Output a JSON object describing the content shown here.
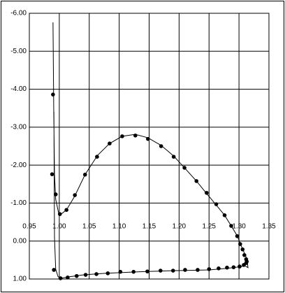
{
  "chart_data": {
    "type": "line",
    "xlim": [
      0.95,
      1.35
    ],
    "ylim": [
      -6,
      1
    ],
    "y_inverted": true,
    "grid": true,
    "xticks": [
      0.95,
      {
        "value": 1,
        "label": "1.00"
      },
      1.05,
      {
        "value": 1.1,
        "label": "1.10"
      },
      1.15,
      {
        "value": 1.2,
        "label": "1.20"
      },
      1.25,
      {
        "value": 1.3,
        "label": "1.30"
      },
      1.35
    ],
    "yticks": [
      {
        "value": -6,
        "label": "-6.00"
      },
      {
        "value": -5,
        "label": "-5.00"
      },
      {
        "value": -4,
        "label": "-4.00"
      },
      {
        "value": -3,
        "label": "-3.00"
      },
      {
        "value": -2,
        "label": "-2.00"
      },
      {
        "value": -1,
        "label": "-1.00"
      },
      {
        "value": 0,
        "label": "0.00"
      },
      {
        "value": 1,
        "label": "1.00"
      }
    ],
    "series": [
      {
        "style": "line",
        "color": "#000000",
        "x": [
          0.9895,
          0.9907,
          0.992,
          0.994,
          0.999,
          1.003,
          1.012,
          1.026,
          1.043,
          1.064,
          1.084,
          1.105,
          1.127,
          1.148,
          1.17,
          1.191,
          1.209,
          1.229,
          1.246,
          1.262,
          1.276,
          1.287,
          1.297,
          1.303,
          1.308,
          1.312,
          1.314,
          1.315,
          1.31,
          1.301,
          1.28,
          1.25,
          1.192,
          1.134,
          1.076,
          1.041,
          1.017,
          1.003,
          0.998,
          0.994,
          0.992,
          0.991
        ],
        "values": [
          -5.76,
          -3.5,
          -1.75,
          -1.1,
          -0.73,
          -0.71,
          -0.82,
          -1.19,
          -1.75,
          -2.26,
          -2.57,
          -2.76,
          -2.81,
          -2.72,
          -2.52,
          -2.24,
          -1.93,
          -1.58,
          -1.25,
          -0.95,
          -0.68,
          -0.4,
          -0.14,
          0.1,
          0.28,
          0.43,
          0.56,
          0.7,
          0.65,
          0.68,
          0.72,
          0.76,
          0.78,
          0.81,
          0.85,
          0.89,
          0.94,
          0.98,
          0.94,
          0.74,
          -0.09,
          -3.4
        ]
      },
      {
        "style": "markers",
        "color": "#000000",
        "x": [
          0.9895,
          0.988,
          0.994,
          1.001,
          1.012,
          1.026,
          1.043,
          1.063,
          1.084,
          1.105,
          1.127,
          1.148,
          1.17,
          1.191,
          1.209,
          1.229,
          1.246,
          1.262,
          1.276,
          1.287,
          1.297,
          1.302,
          1.306,
          1.309,
          1.312,
          1.313,
          0.991,
          1.002,
          1.014,
          1.029,
          1.044,
          1.062,
          1.081,
          1.102,
          1.124,
          1.147,
          1.169,
          1.19,
          1.21,
          1.231,
          1.25,
          1.266,
          1.28,
          1.291,
          1.301,
          1.308,
          1.312
        ],
        "values": [
          -3.86,
          -1.76,
          -1.23,
          -0.71,
          -0.82,
          -1.21,
          -1.75,
          -2.22,
          -2.57,
          -2.76,
          -2.78,
          -2.69,
          -2.5,
          -2.22,
          -1.93,
          -1.58,
          -1.27,
          -0.97,
          -0.68,
          -0.4,
          -0.13,
          0.08,
          0.22,
          0.37,
          0.48,
          0.54,
          0.76,
          0.98,
          0.96,
          0.92,
          0.89,
          0.87,
          0.85,
          0.81,
          0.81,
          0.8,
          0.78,
          0.78,
          0.76,
          0.76,
          0.74,
          0.72,
          0.7,
          0.69,
          0.67,
          0.63,
          0.58
        ]
      }
    ]
  }
}
